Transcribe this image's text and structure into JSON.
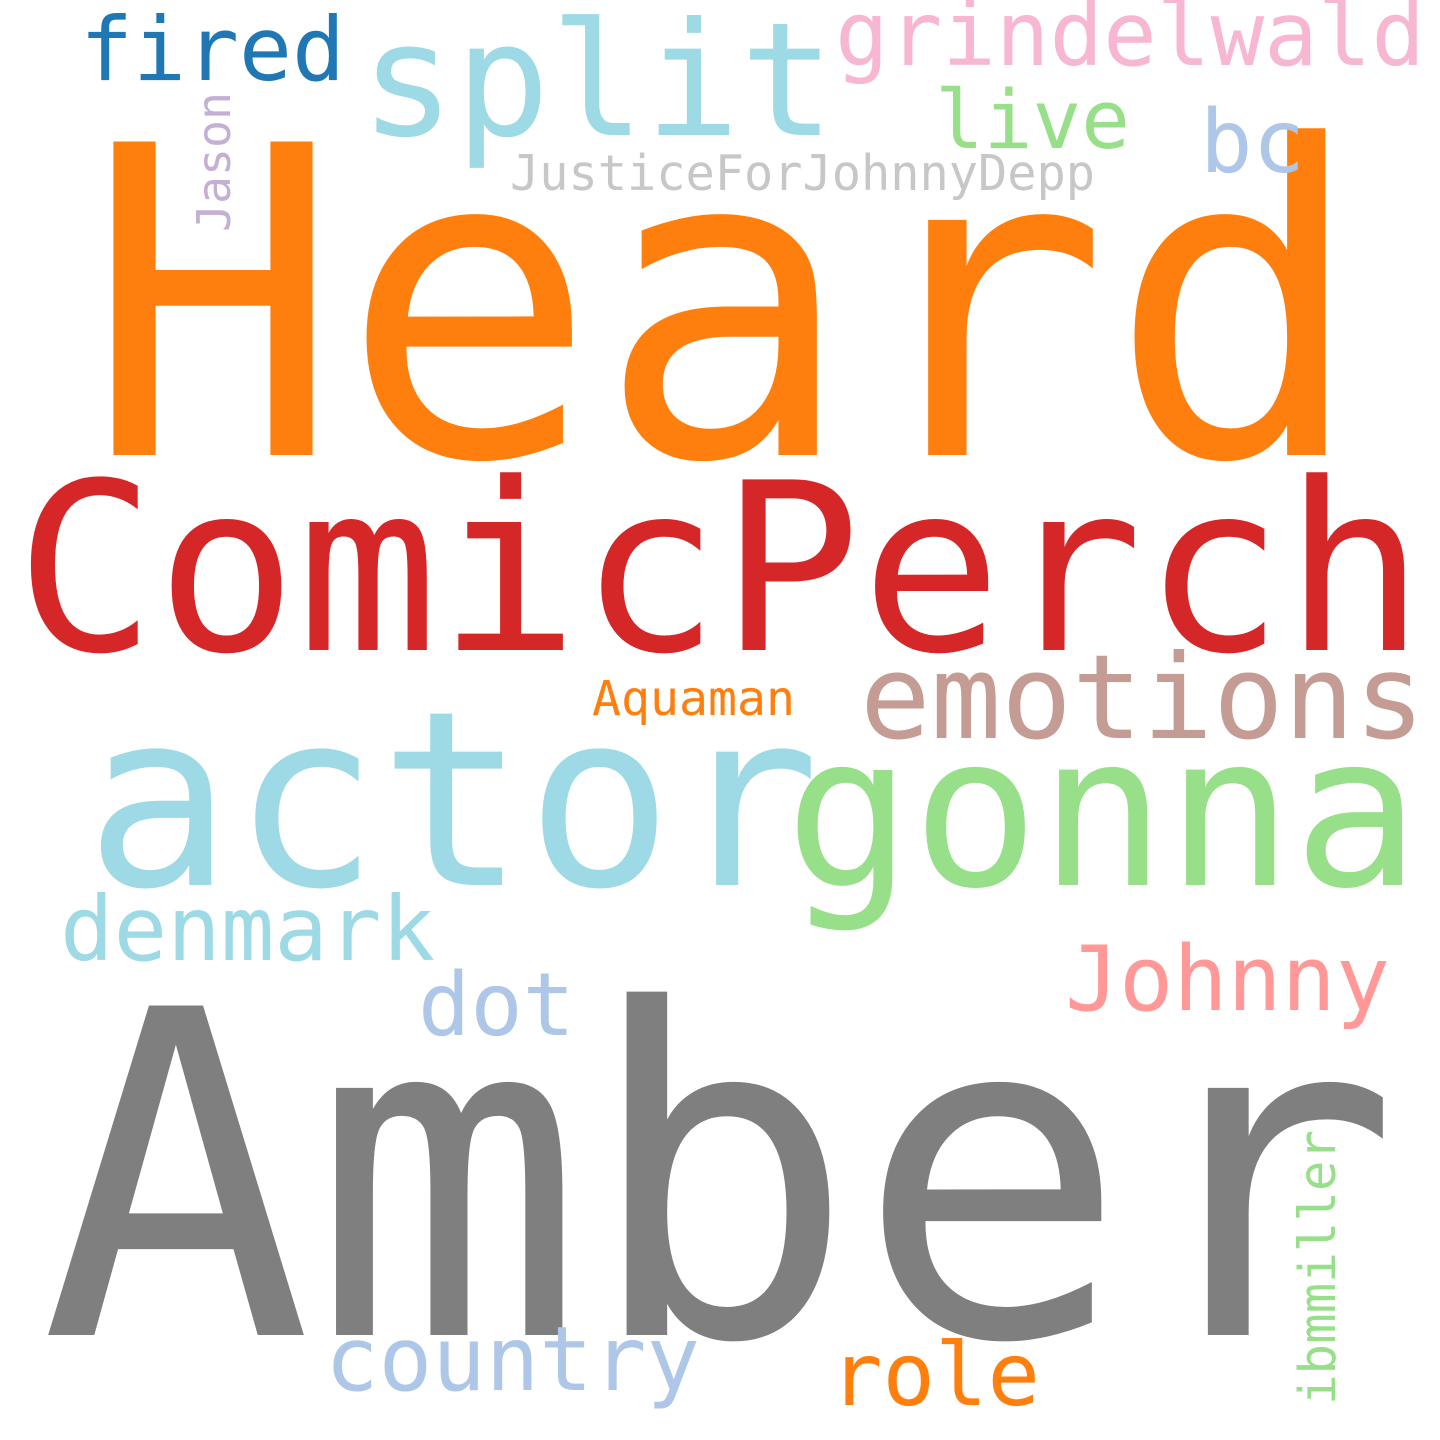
{
  "words": [
    {
      "text": "Heard",
      "color": "#ff7f0e"
    },
    {
      "text": "ComicPerch",
      "color": "#d62728"
    },
    {
      "text": "Amber",
      "color": "#7f7f7f"
    },
    {
      "text": "actor",
      "color": "#9edae5"
    },
    {
      "text": "gonna",
      "color": "#98df8a"
    },
    {
      "text": "emotions",
      "color": "#c49c94"
    },
    {
      "text": "split",
      "color": "#9edae5"
    },
    {
      "text": "grindelwald",
      "color": "#f7b6d2"
    },
    {
      "text": "fired",
      "color": "#1f77b4"
    },
    {
      "text": "live",
      "color": "#98df8a"
    },
    {
      "text": "bc",
      "color": "#aec7e8"
    },
    {
      "text": "JusticeForJohnnyDepp",
      "color": "#c7c7c7"
    },
    {
      "text": "Jason",
      "color": "#c5b0d5"
    },
    {
      "text": "Aquaman",
      "color": "#ff7f0e"
    },
    {
      "text": "denmark",
      "color": "#9edae5"
    },
    {
      "text": "Johnny",
      "color": "#ff9896"
    },
    {
      "text": "dot",
      "color": "#aec7e8"
    },
    {
      "text": "country",
      "color": "#aec7e8"
    },
    {
      "text": "role",
      "color": "#ff7f0e"
    },
    {
      "text": "ibmmiller",
      "color": "#98df8a"
    }
  ]
}
